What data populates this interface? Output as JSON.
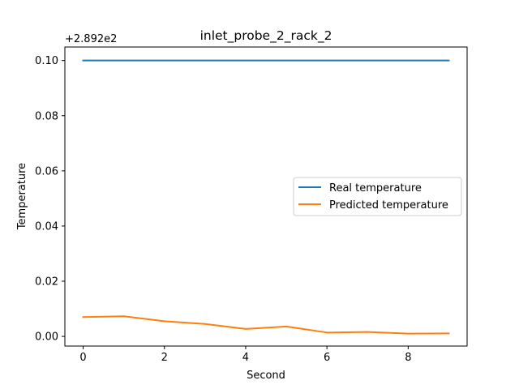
{
  "chart_data": {
    "type": "line",
    "title": "inlet_probe_2_rack_2",
    "xlabel": "Second",
    "ylabel": "Temperature",
    "y_offset_label": "+2.892e2",
    "x": [
      0,
      1,
      2,
      3,
      4,
      5,
      6,
      7,
      8,
      9
    ],
    "xlim": [
      -0.45,
      9.45
    ],
    "ylim": [
      -0.0035,
      0.1049
    ],
    "x_ticks": [
      {
        "value": 0,
        "label": "0"
      },
      {
        "value": 2,
        "label": "2"
      },
      {
        "value": 4,
        "label": "4"
      },
      {
        "value": 6,
        "label": "6"
      },
      {
        "value": 8,
        "label": "8"
      }
    ],
    "y_ticks": [
      {
        "value": 0.0,
        "label": "0.00"
      },
      {
        "value": 0.02,
        "label": "0.02"
      },
      {
        "value": 0.04,
        "label": "0.04"
      },
      {
        "value": 0.06,
        "label": "0.06"
      },
      {
        "value": 0.08,
        "label": "0.08"
      },
      {
        "value": 0.1,
        "label": "0.10"
      }
    ],
    "series": [
      {
        "name": "Real temperature",
        "color": "#1f77b4",
        "values": [
          0.1,
          0.1,
          0.1,
          0.1,
          0.1,
          0.1,
          0.1,
          0.1,
          0.1,
          0.1
        ]
      },
      {
        "name": "Predicted temperature",
        "color": "#ff7f0e",
        "values": [
          0.007,
          0.0073,
          0.0055,
          0.0045,
          0.0027,
          0.0036,
          0.0014,
          0.0016,
          0.001,
          0.0011
        ]
      }
    ],
    "legend_position": "center-right",
    "grid": false
  }
}
